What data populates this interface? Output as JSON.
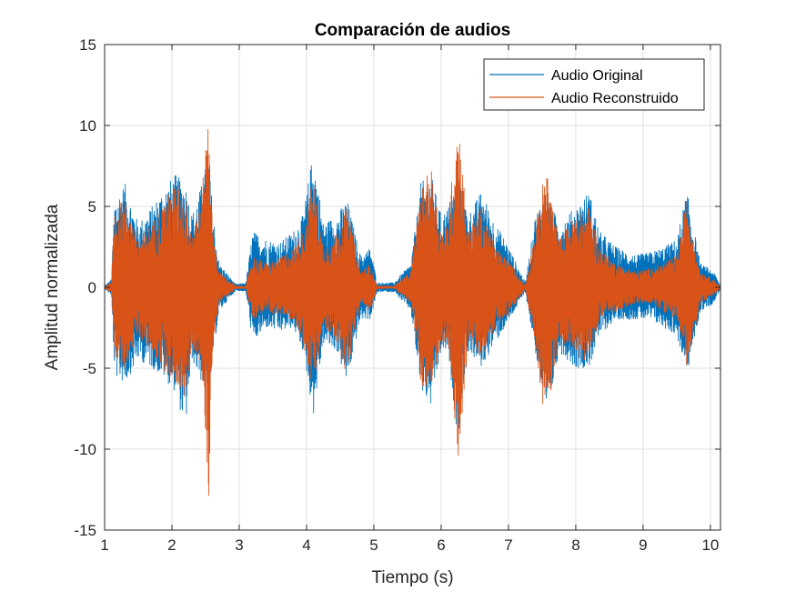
{
  "chart_data": {
    "type": "line",
    "title": "Comparación de audios",
    "xlabel": "Tiempo (s)",
    "ylabel": "Amplitud normalizada",
    "xlim": [
      1,
      10.15
    ],
    "ylim": [
      -15,
      15
    ],
    "xticks": [
      1,
      2,
      3,
      4,
      5,
      6,
      7,
      8,
      9,
      10
    ],
    "yticks": [
      -15,
      -10,
      -5,
      0,
      5,
      10,
      15
    ],
    "xtick_labels": [
      "1",
      "2",
      "3",
      "4",
      "5",
      "6",
      "7",
      "8",
      "9",
      "10"
    ],
    "ytick_labels": [
      "-15",
      "-10",
      "-5",
      "0",
      "5",
      "10",
      "15"
    ],
    "grid": true,
    "legend_position": "top-right",
    "series": [
      {
        "name": "Audio Original",
        "color": "#0072BD",
        "envelope": {
          "t": [
            1.0,
            1.1,
            1.15,
            1.3,
            1.5,
            1.7,
            1.85,
            2.05,
            2.2,
            2.3,
            2.45,
            2.55,
            2.6,
            2.7,
            2.95,
            3.1,
            3.2,
            3.4,
            3.6,
            3.8,
            3.95,
            4.1,
            4.25,
            4.45,
            4.6,
            4.8,
            4.95,
            5.05,
            5.3,
            5.55,
            5.7,
            5.85,
            6.0,
            6.1,
            6.25,
            6.4,
            6.6,
            6.8,
            6.95,
            7.25,
            7.4,
            7.55,
            7.75,
            8.0,
            8.2,
            8.35,
            8.6,
            8.9,
            9.1,
            9.3,
            9.5,
            9.65,
            9.85,
            10.05,
            10.15
          ],
          "max": [
            0.1,
            0.5,
            5.5,
            6.5,
            4.0,
            5.0,
            6.0,
            7.0,
            6.5,
            4.5,
            6.5,
            8.5,
            5.0,
            1.5,
            0.2,
            0.3,
            3.5,
            3.0,
            2.8,
            3.5,
            4.5,
            8.5,
            4.0,
            4.5,
            5.5,
            2.0,
            2.5,
            0.3,
            0.3,
            1.5,
            6.5,
            7.0,
            4.5,
            5.0,
            7.0,
            4.5,
            6.0,
            4.0,
            3.0,
            0.3,
            4.5,
            6.0,
            4.0,
            5.0,
            6.0,
            3.5,
            2.5,
            2.0,
            2.2,
            2.5,
            3.0,
            6.0,
            1.5,
            1.0,
            0.1
          ],
          "min": [
            -0.1,
            -0.5,
            -5.5,
            -6.0,
            -4.5,
            -5.0,
            -5.5,
            -6.5,
            -8.8,
            -4.5,
            -6.0,
            -7.5,
            -4.5,
            -1.5,
            -0.2,
            -0.3,
            -3.5,
            -2.5,
            -2.8,
            -2.5,
            -4.0,
            -8.0,
            -3.5,
            -4.0,
            -6.0,
            -2.0,
            -2.0,
            -0.3,
            -0.3,
            -1.5,
            -6.5,
            -7.5,
            -4.0,
            -4.0,
            -9.5,
            -4.0,
            -5.0,
            -3.5,
            -2.5,
            -0.3,
            -4.0,
            -8.8,
            -4.0,
            -5.0,
            -5.0,
            -3.0,
            -2.0,
            -2.0,
            -2.0,
            -2.5,
            -3.0,
            -5.5,
            -1.5,
            -1.0,
            -0.1
          ]
        }
      },
      {
        "name": "Audio Reconstruido",
        "color": "#D95319",
        "envelope": {
          "t": [
            1.0,
            1.1,
            1.15,
            1.3,
            1.5,
            1.7,
            1.85,
            2.05,
            2.2,
            2.3,
            2.45,
            2.55,
            2.6,
            2.7,
            2.95,
            3.1,
            3.2,
            3.4,
            3.6,
            3.8,
            3.95,
            4.1,
            4.25,
            4.45,
            4.6,
            4.8,
            4.95,
            5.05,
            5.3,
            5.55,
            5.7,
            5.85,
            6.0,
            6.1,
            6.25,
            6.4,
            6.6,
            6.8,
            6.95,
            7.25,
            7.4,
            7.55,
            7.75,
            8.0,
            8.2,
            8.35,
            8.6,
            8.9,
            9.1,
            9.3,
            9.5,
            9.65,
            9.85,
            10.05,
            10.15
          ],
          "max": [
            0.05,
            0.4,
            5.0,
            5.5,
            3.0,
            4.0,
            5.0,
            6.5,
            6.0,
            3.5,
            6.0,
            11.7,
            4.0,
            1.0,
            0.1,
            0.1,
            2.0,
            1.5,
            1.8,
            2.5,
            3.5,
            7.0,
            2.5,
            3.5,
            5.0,
            1.0,
            1.5,
            0.1,
            0.1,
            1.0,
            6.0,
            7.5,
            3.5,
            4.0,
            10.8,
            3.5,
            5.0,
            2.5,
            2.0,
            0.1,
            3.5,
            7.5,
            3.0,
            4.5,
            5.0,
            2.5,
            1.5,
            1.0,
            1.2,
            1.5,
            2.0,
            5.5,
            1.0,
            0.5,
            0.05
          ],
          "min": [
            -0.05,
            -0.4,
            -5.0,
            -5.0,
            -3.0,
            -4.0,
            -5.0,
            -6.0,
            -7.0,
            -3.5,
            -5.5,
            -13.3,
            -4.0,
            -1.0,
            -0.1,
            -0.1,
            -2.0,
            -1.5,
            -1.8,
            -2.0,
            -3.5,
            -6.5,
            -2.5,
            -3.5,
            -5.5,
            -1.0,
            -1.5,
            -0.1,
            -0.1,
            -1.0,
            -6.0,
            -7.0,
            -3.5,
            -3.5,
            -11.0,
            -3.5,
            -4.5,
            -2.5,
            -2.0,
            -0.1,
            -3.5,
            -8.8,
            -3.0,
            -4.5,
            -4.5,
            -2.0,
            -1.5,
            -1.0,
            -1.0,
            -1.5,
            -2.0,
            -5.0,
            -1.0,
            -0.5,
            -0.05
          ]
        }
      }
    ]
  }
}
